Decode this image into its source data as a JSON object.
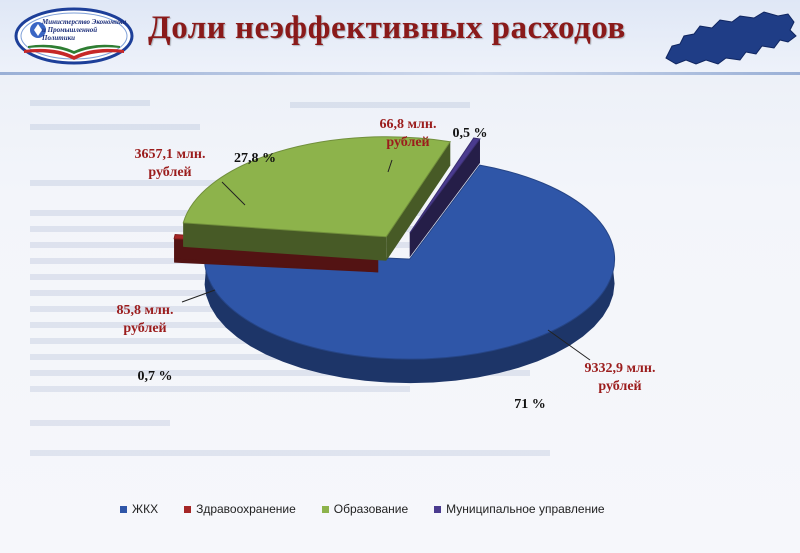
{
  "slide": {
    "title": "Доли неэффективных расходов",
    "logo_text": "Министерство Экономики и Промышленной Политики"
  },
  "colors": {
    "title": "#8a1a1a",
    "label_value": "#9b1c1c",
    "label_percent": "#111111"
  },
  "chart_data": {
    "type": "pie",
    "title": "",
    "slices": [
      {
        "name": "ЖКХ",
        "value": 9332.9,
        "percent": 71,
        "value_label": "9332,9 млн. рублей",
        "percent_label": "71 %",
        "color": "#2f56a8"
      },
      {
        "name": "Здравоохранение",
        "value": 85.8,
        "percent": 0.7,
        "value_label": "85,8 млн. рублей",
        "percent_label": "0,7 %",
        "color": "#a52626"
      },
      {
        "name": "Образование",
        "value": 3657.1,
        "percent": 27.8,
        "value_label": "3657,1 млн. рублей",
        "percent_label": "27,8 %",
        "color": "#8db34b"
      },
      {
        "name": "Муниципальное управление",
        "value": 66.8,
        "percent": 0.5,
        "value_label": "66,8 млн. рублей",
        "percent_label": "0,5 %",
        "color": "#4a3b8f"
      }
    ],
    "legend_position": "bottom",
    "style": "3d-exploded"
  }
}
